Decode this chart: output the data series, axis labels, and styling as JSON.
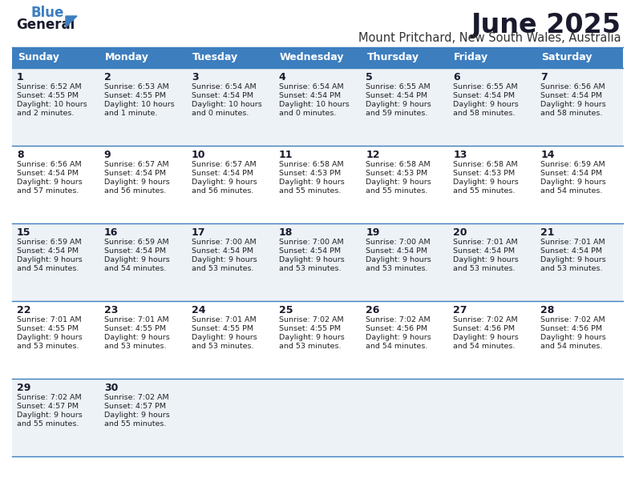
{
  "title": "June 2025",
  "subtitle": "Mount Pritchard, New South Wales, Australia",
  "header_bg": "#3d7ebf",
  "header_text": "#ffffff",
  "row_bg_odd": "#edf2f7",
  "row_bg_even": "#ffffff",
  "grid_line_color": "#3d7ebf",
  "day_headers": [
    "Sunday",
    "Monday",
    "Tuesday",
    "Wednesday",
    "Thursday",
    "Friday",
    "Saturday"
  ],
  "calendar_data": [
    [
      {
        "day": "1",
        "sunrise": "6:52 AM",
        "sunset": "4:55 PM",
        "daylight": "10 hours",
        "daylight2": "and 2 minutes."
      },
      {
        "day": "2",
        "sunrise": "6:53 AM",
        "sunset": "4:55 PM",
        "daylight": "10 hours",
        "daylight2": "and 1 minute."
      },
      {
        "day": "3",
        "sunrise": "6:54 AM",
        "sunset": "4:54 PM",
        "daylight": "10 hours",
        "daylight2": "and 0 minutes."
      },
      {
        "day": "4",
        "sunrise": "6:54 AM",
        "sunset": "4:54 PM",
        "daylight": "10 hours",
        "daylight2": "and 0 minutes."
      },
      {
        "day": "5",
        "sunrise": "6:55 AM",
        "sunset": "4:54 PM",
        "daylight": "9 hours",
        "daylight2": "and 59 minutes."
      },
      {
        "day": "6",
        "sunrise": "6:55 AM",
        "sunset": "4:54 PM",
        "daylight": "9 hours",
        "daylight2": "and 58 minutes."
      },
      {
        "day": "7",
        "sunrise": "6:56 AM",
        "sunset": "4:54 PM",
        "daylight": "9 hours",
        "daylight2": "and 58 minutes."
      }
    ],
    [
      {
        "day": "8",
        "sunrise": "6:56 AM",
        "sunset": "4:54 PM",
        "daylight": "9 hours",
        "daylight2": "and 57 minutes."
      },
      {
        "day": "9",
        "sunrise": "6:57 AM",
        "sunset": "4:54 PM",
        "daylight": "9 hours",
        "daylight2": "and 56 minutes."
      },
      {
        "day": "10",
        "sunrise": "6:57 AM",
        "sunset": "4:54 PM",
        "daylight": "9 hours",
        "daylight2": "and 56 minutes."
      },
      {
        "day": "11",
        "sunrise": "6:58 AM",
        "sunset": "4:53 PM",
        "daylight": "9 hours",
        "daylight2": "and 55 minutes."
      },
      {
        "day": "12",
        "sunrise": "6:58 AM",
        "sunset": "4:53 PM",
        "daylight": "9 hours",
        "daylight2": "and 55 minutes."
      },
      {
        "day": "13",
        "sunrise": "6:58 AM",
        "sunset": "4:53 PM",
        "daylight": "9 hours",
        "daylight2": "and 55 minutes."
      },
      {
        "day": "14",
        "sunrise": "6:59 AM",
        "sunset": "4:54 PM",
        "daylight": "9 hours",
        "daylight2": "and 54 minutes."
      }
    ],
    [
      {
        "day": "15",
        "sunrise": "6:59 AM",
        "sunset": "4:54 PM",
        "daylight": "9 hours",
        "daylight2": "and 54 minutes."
      },
      {
        "day": "16",
        "sunrise": "6:59 AM",
        "sunset": "4:54 PM",
        "daylight": "9 hours",
        "daylight2": "and 54 minutes."
      },
      {
        "day": "17",
        "sunrise": "7:00 AM",
        "sunset": "4:54 PM",
        "daylight": "9 hours",
        "daylight2": "and 53 minutes."
      },
      {
        "day": "18",
        "sunrise": "7:00 AM",
        "sunset": "4:54 PM",
        "daylight": "9 hours",
        "daylight2": "and 53 minutes."
      },
      {
        "day": "19",
        "sunrise": "7:00 AM",
        "sunset": "4:54 PM",
        "daylight": "9 hours",
        "daylight2": "and 53 minutes."
      },
      {
        "day": "20",
        "sunrise": "7:01 AM",
        "sunset": "4:54 PM",
        "daylight": "9 hours",
        "daylight2": "and 53 minutes."
      },
      {
        "day": "21",
        "sunrise": "7:01 AM",
        "sunset": "4:54 PM",
        "daylight": "9 hours",
        "daylight2": "and 53 minutes."
      }
    ],
    [
      {
        "day": "22",
        "sunrise": "7:01 AM",
        "sunset": "4:55 PM",
        "daylight": "9 hours",
        "daylight2": "and 53 minutes."
      },
      {
        "day": "23",
        "sunrise": "7:01 AM",
        "sunset": "4:55 PM",
        "daylight": "9 hours",
        "daylight2": "and 53 minutes."
      },
      {
        "day": "24",
        "sunrise": "7:01 AM",
        "sunset": "4:55 PM",
        "daylight": "9 hours",
        "daylight2": "and 53 minutes."
      },
      {
        "day": "25",
        "sunrise": "7:02 AM",
        "sunset": "4:55 PM",
        "daylight": "9 hours",
        "daylight2": "and 53 minutes."
      },
      {
        "day": "26",
        "sunrise": "7:02 AM",
        "sunset": "4:56 PM",
        "daylight": "9 hours",
        "daylight2": "and 54 minutes."
      },
      {
        "day": "27",
        "sunrise": "7:02 AM",
        "sunset": "4:56 PM",
        "daylight": "9 hours",
        "daylight2": "and 54 minutes."
      },
      {
        "day": "28",
        "sunrise": "7:02 AM",
        "sunset": "4:56 PM",
        "daylight": "9 hours",
        "daylight2": "and 54 minutes."
      }
    ],
    [
      {
        "day": "29",
        "sunrise": "7:02 AM",
        "sunset": "4:57 PM",
        "daylight": "9 hours",
        "daylight2": "and 55 minutes."
      },
      {
        "day": "30",
        "sunrise": "7:02 AM",
        "sunset": "4:57 PM",
        "daylight": "9 hours",
        "daylight2": "and 55 minutes."
      },
      null,
      null,
      null,
      null,
      null
    ]
  ],
  "fig_width": 7.92,
  "fig_height": 6.12,
  "bg_color": "#ffffff",
  "title_color": "#1a1a2e",
  "subtitle_color": "#333333",
  "day_num_color": "#1a1a2e",
  "cell_text_color": "#222222"
}
